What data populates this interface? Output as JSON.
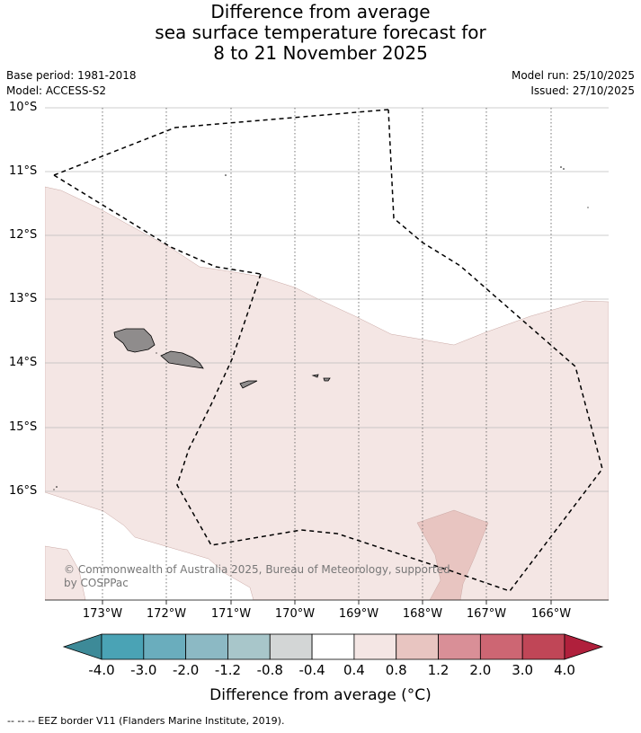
{
  "title_lines": [
    "Difference from average",
    "sea surface temperature forecast for",
    "8 to 21 November 2025"
  ],
  "base_period": "Base period: 1981-2018",
  "model": "Model: ACCESS-S2",
  "model_run": "Model run: 25/10/2025",
  "issued": "Issued: 27/10/2025",
  "lat_labels": [
    "10°S",
    "11°S",
    "12°S",
    "13°S",
    "14°S",
    "15°S",
    "16°S"
  ],
  "lon_labels": [
    "173°W",
    "172°W",
    "171°W",
    "170°W",
    "169°W",
    "168°W",
    "167°W",
    "166°W"
  ],
  "copyright_lines": [
    "© Commonwealth of Australia 2025, Bureau of Meteorology, supported",
    "by COSPPac"
  ],
  "colorbar": {
    "labels": [
      "-4.0",
      "-3.0",
      "-2.0",
      "-1.2",
      "-0.8",
      "-0.4",
      "0.4",
      "0.8",
      "1.2",
      "2.0",
      "3.0",
      "4.0"
    ],
    "colors": [
      "#3d8a98",
      "#4aa3b5",
      "#6aadbd",
      "#8cb9c4",
      "#a8c6ca",
      "#d3d6d6",
      "#ffffff",
      "#f4e6e4",
      "#e8c5c1",
      "#d98f97",
      "#cd6673",
      "#c04657",
      "#b0203c"
    ],
    "title": "Difference from average (°C)"
  },
  "map_colors": {
    "land": "#8f8c8c",
    "anomaly_0_4_to_0_8": "#f4e6e4",
    "anomaly_0_8_to_1_2": "#e8c5c1",
    "no_data": "#ffffff"
  },
  "footnote": "-- -- -- EEZ border V11 (Flanders Marine Institute, 2019)."
}
